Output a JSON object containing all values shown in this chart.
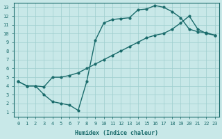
{
  "xlabel": "Humidex (Indice chaleur)",
  "background_color": "#c8e8e8",
  "line_color": "#1a6b6b",
  "xlim": [
    -0.5,
    23.5
  ],
  "ylim": [
    0.5,
    13.5
  ],
  "xticks": [
    0,
    1,
    2,
    3,
    4,
    5,
    6,
    7,
    8,
    9,
    10,
    11,
    12,
    13,
    14,
    15,
    16,
    17,
    18,
    19,
    20,
    21,
    22,
    23
  ],
  "yticks": [
    1,
    2,
    3,
    4,
    5,
    6,
    7,
    8,
    9,
    10,
    11,
    12,
    13
  ],
  "line1_x": [
    0,
    1,
    2,
    3,
    4,
    5,
    6,
    7,
    8,
    9,
    10,
    11,
    12,
    13,
    14,
    15,
    16,
    17,
    18,
    19,
    20,
    21,
    22,
    23
  ],
  "line1_y": [
    4.5,
    4.0,
    4.0,
    3.0,
    2.2,
    2.0,
    1.8,
    1.2,
    4.5,
    9.2,
    11.2,
    11.6,
    11.7,
    11.8,
    12.7,
    12.8,
    13.2,
    13.0,
    12.5,
    11.8,
    10.5,
    10.2,
    10.1,
    9.8
  ],
  "line2_x": [
    0,
    1,
    2,
    3,
    4,
    5,
    6,
    7,
    8,
    9,
    10,
    11,
    12,
    13,
    14,
    15,
    16,
    17,
    18,
    19,
    20,
    21,
    22,
    23
  ],
  "line2_y": [
    4.5,
    4.0,
    4.0,
    3.9,
    5.0,
    5.0,
    5.2,
    5.5,
    6.0,
    6.5,
    7.0,
    7.5,
    8.0,
    8.5,
    9.0,
    9.5,
    9.8,
    10.0,
    10.5,
    11.2,
    12.0,
    10.5,
    10.0,
    9.8
  ],
  "marker": "o",
  "markersize": 2,
  "linewidth": 1.0,
  "grid_color": "#9ecece",
  "font_family": "monospace",
  "tick_fontsize": 5,
  "xlabel_fontsize": 6
}
